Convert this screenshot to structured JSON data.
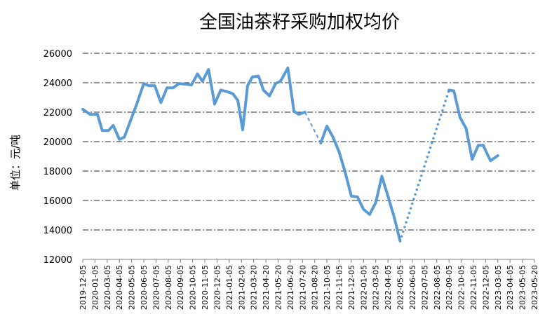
{
  "chart_data": {
    "type": "line",
    "title": "全国油茶籽采购加权均价",
    "ylabel": "单位：元/吨",
    "xlabel": "",
    "ylim": [
      12000,
      26000
    ],
    "yticks": [
      "12000",
      "14000",
      "16000",
      "18000",
      "20000",
      "22000",
      "24000",
      "26000"
    ],
    "grid": true,
    "legend": "none",
    "color": "#5B9BD5",
    "x_tick_labels": [
      "2019-12-05",
      "2020-01-05",
      "2020-03-05",
      "2020-04-05",
      "2020-05-05",
      "2020-06-05",
      "2020-07-05",
      "2020-08-05",
      "2020-09-05",
      "2020-10-05",
      "2020-11-05",
      "2020-12-05",
      "2021-01-05",
      "2021-02-05",
      "2021-03-20",
      "2021-04-20",
      "2021-05-20",
      "2021-06-20",
      "2021-07-20",
      "2021-08-20",
      "2021-10-05",
      "2021-11-05",
      "2021-12-05",
      "2022-01-05",
      "2022-03-05",
      "2022-04-05",
      "2022-05-05",
      "2022-06-05",
      "2022-07-05",
      "2022-08-05",
      "2022-09-05",
      "2022-10-05",
      "2022-11-05",
      "2022-12-05",
      "2023-03-05",
      "2023-04-05",
      "2023-05-05",
      "2023-05-20"
    ],
    "series": [
      {
        "style": "solid",
        "points": [
          [
            0.0,
            22200
          ],
          [
            0.6,
            21850
          ],
          [
            1.2,
            21850
          ],
          [
            1.6,
            20750
          ],
          [
            2.1,
            20750
          ],
          [
            2.5,
            21100
          ],
          [
            3.0,
            20150
          ],
          [
            3.4,
            20300
          ],
          [
            4.4,
            22500
          ],
          [
            5.0,
            23950
          ],
          [
            5.4,
            23800
          ],
          [
            5.9,
            23800
          ],
          [
            6.4,
            22650
          ],
          [
            6.9,
            23650
          ],
          [
            7.4,
            23650
          ],
          [
            7.9,
            23950
          ],
          [
            8.4,
            23900
          ],
          [
            8.9,
            23850
          ],
          [
            9.4,
            24600
          ],
          [
            9.8,
            24100
          ],
          [
            10.3,
            24900
          ],
          [
            10.8,
            22550
          ],
          [
            11.3,
            23500
          ],
          [
            11.8,
            23400
          ],
          [
            12.3,
            23250
          ],
          [
            12.7,
            22800
          ],
          [
            13.1,
            20800
          ],
          [
            13.5,
            23800
          ],
          [
            13.9,
            24400
          ],
          [
            14.4,
            24450
          ],
          [
            14.8,
            23500
          ],
          [
            15.3,
            23100
          ],
          [
            15.8,
            23950
          ],
          [
            16.2,
            24100
          ],
          [
            16.8,
            25000
          ],
          [
            17.3,
            22050
          ],
          [
            17.7,
            21850
          ],
          [
            18.2,
            22000
          ]
        ]
      },
      {
        "style": "dashed",
        "points": [
          [
            18.2,
            22000
          ],
          [
            19.5,
            19900
          ]
        ]
      },
      {
        "style": "solid",
        "points": [
          [
            19.5,
            19900
          ],
          [
            20.0,
            21050
          ],
          [
            20.5,
            20300
          ],
          [
            21.0,
            19300
          ],
          [
            21.5,
            17900
          ],
          [
            22.0,
            16300
          ],
          [
            22.5,
            16250
          ],
          [
            23.0,
            15400
          ],
          [
            23.5,
            15050
          ],
          [
            24.0,
            15850
          ],
          [
            24.5,
            17650
          ],
          [
            25.0,
            16300
          ],
          [
            25.5,
            14900
          ],
          [
            26.0,
            13250
          ]
        ]
      },
      {
        "style": "dotted",
        "points": [
          [
            26.0,
            13250
          ],
          [
            30.0,
            23500
          ]
        ]
      },
      {
        "style": "solid",
        "points": [
          [
            30.0,
            23500
          ],
          [
            30.4,
            23450
          ],
          [
            30.9,
            21650
          ],
          [
            31.4,
            20900
          ],
          [
            31.9,
            18800
          ],
          [
            32.4,
            19750
          ],
          [
            32.8,
            19750
          ],
          [
            33.4,
            18700
          ],
          [
            34.0,
            19050
          ]
        ]
      }
    ]
  }
}
